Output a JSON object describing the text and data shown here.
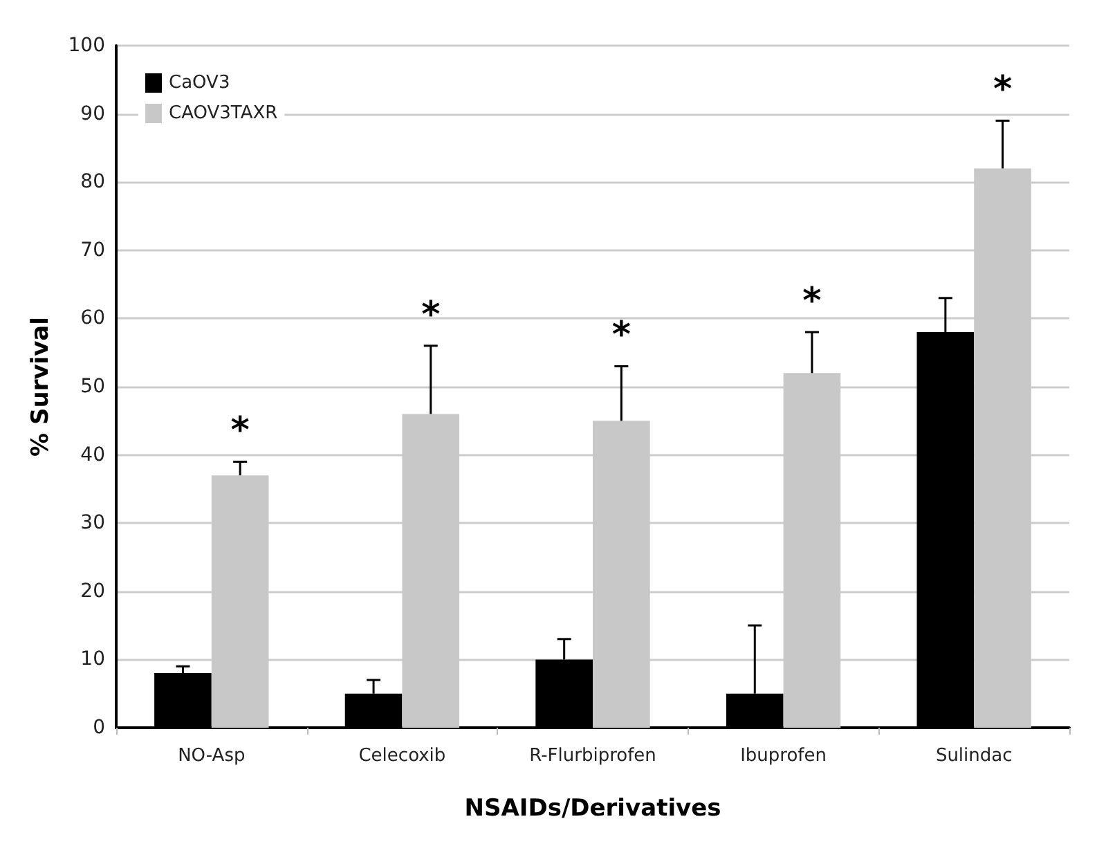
{
  "chart_data": {
    "type": "bar",
    "categories": [
      "NO-Asp",
      "Celecoxib",
      "R-Flurbiprofen",
      "Ibuprofen",
      "Sulindac"
    ],
    "series": [
      {
        "name": "CaOV3",
        "color": "#000000",
        "values": [
          8,
          5,
          10,
          5,
          58
        ],
        "errors": [
          [
            8,
            9
          ],
          [
            5,
            7
          ],
          [
            10,
            13
          ],
          [
            5,
            15
          ],
          [
            58,
            63
          ]
        ]
      },
      {
        "name": "CAOV3TAXR",
        "color": "#c8c8c8",
        "values": [
          37,
          46,
          45,
          52,
          82
        ],
        "errors": [
          [
            37,
            39
          ],
          [
            46,
            56
          ],
          [
            45,
            53
          ],
          [
            52,
            58
          ],
          [
            82,
            89
          ]
        ]
      }
    ],
    "xlabel": "NSAIDs/Derivatives",
    "ylabel": "% Survival",
    "ylim": [
      0,
      100
    ],
    "yticks": [
      0,
      10,
      20,
      30,
      40,
      50,
      60,
      70,
      80,
      90,
      100
    ],
    "grid": "y",
    "legend": "top left",
    "annotations": [
      "*",
      "*",
      "*",
      "*",
      "*"
    ]
  }
}
